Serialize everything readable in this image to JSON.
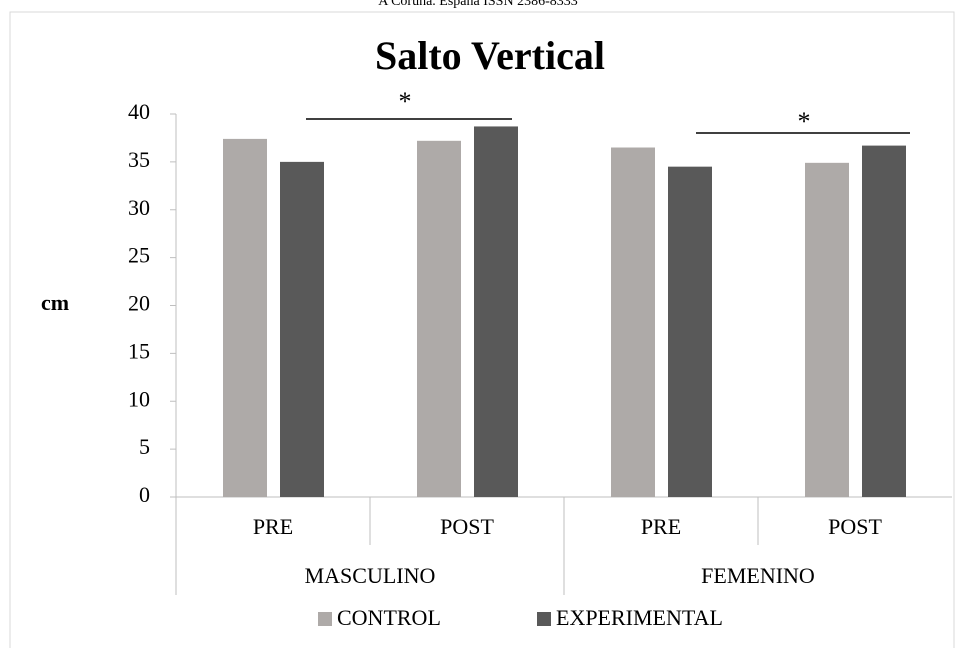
{
  "header": "A Coruña. España ISSN 2386-8333",
  "chart_data": {
    "type": "bar",
    "title": "Salto Vertical",
    "y_label": "cm",
    "categories": [
      "PRE",
      "POST",
      "PRE",
      "POST"
    ],
    "groups": [
      "MASCULINO",
      "FEMENINO"
    ],
    "series": [
      {
        "name": "CONTROL",
        "color": "#aeaaa8",
        "values": [
          37.4,
          37.2,
          36.5,
          34.9
        ]
      },
      {
        "name": "EXPERIMENTAL",
        "color": "#595959",
        "values": [
          35.0,
          38.7,
          34.5,
          36.7
        ]
      }
    ],
    "annotations": [
      "*",
      "*"
    ],
    "ylim": [
      0,
      40
    ],
    "yticks": [
      0,
      5,
      10,
      15,
      20,
      25,
      30,
      35,
      40
    ],
    "legend": "bottom"
  }
}
